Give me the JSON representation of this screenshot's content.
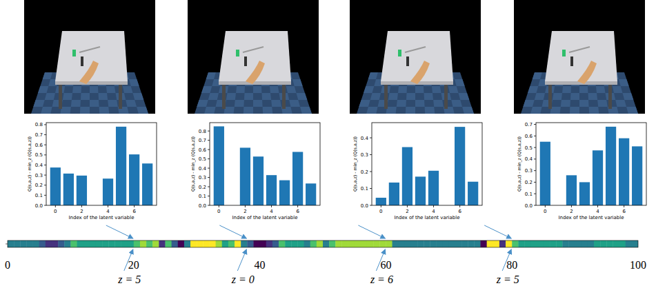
{
  "chart_data": [
    {
      "type": "bar",
      "x_label": "Index of the latent variable",
      "y_label": "Q(s,a,z) - min_z (Q(s,a,z))",
      "color": "#1f77b4",
      "categories": [
        0,
        1,
        2,
        3,
        4,
        5,
        6,
        7
      ],
      "values": [
        0.375,
        0.315,
        0.295,
        0,
        0.265,
        0.78,
        0.505,
        0.415
      ],
      "xlim": [
        -0.7,
        7.7
      ],
      "xticks": [
        0,
        2,
        4,
        6
      ],
      "ylim": [
        0,
        0.82
      ],
      "yticks": [
        {
          "value": 0,
          "label": "0.0"
        },
        {
          "value": 0.1,
          "label": "0.1"
        },
        {
          "value": 0.2,
          "label": "0.2"
        },
        {
          "value": 0.3,
          "label": "0.3"
        },
        {
          "value": 0.4,
          "label": "0.4"
        },
        {
          "value": 0.5,
          "label": "0.5"
        },
        {
          "value": 0.6,
          "label": "0.6"
        },
        {
          "value": 0.7,
          "label": "0.7"
        },
        {
          "value": 0.8,
          "label": "0.8"
        }
      ]
    },
    {
      "type": "bar",
      "x_label": "Index of the latent variable",
      "y_label": "Q(s,a,z) - min_z (Q(s,a,z))",
      "color": "#1f77b4",
      "categories": [
        0,
        1,
        2,
        3,
        4,
        5,
        6,
        7
      ],
      "values": [
        0.85,
        0,
        0.62,
        0.525,
        0.325,
        0.27,
        0.575,
        0.235
      ],
      "xlim": [
        -0.7,
        7.7
      ],
      "xticks": [
        0,
        2,
        4,
        6
      ],
      "ylim": [
        0,
        0.89
      ],
      "yticks": [
        {
          "value": 0,
          "label": "0.0"
        },
        {
          "value": 0.1,
          "label": "0.1"
        },
        {
          "value": 0.2,
          "label": "0.2"
        },
        {
          "value": 0.3,
          "label": "0.3"
        },
        {
          "value": 0.4,
          "label": "0.4"
        },
        {
          "value": 0.5,
          "label": "0.5"
        },
        {
          "value": 0.6,
          "label": "0.6"
        },
        {
          "value": 0.7,
          "label": "0.7"
        },
        {
          "value": 0.8,
          "label": "0.8"
        }
      ]
    },
    {
      "type": "bar",
      "x_label": "Index of the latent variable",
      "y_label": "Q(s,a,z) - min_z (Q(s,a,z))",
      "color": "#1f77b4",
      "categories": [
        0,
        1,
        2,
        3,
        4,
        5,
        6,
        7
      ],
      "values": [
        0.045,
        0.135,
        0.345,
        0.17,
        0.205,
        0,
        0.465,
        0.14
      ],
      "xlim": [
        -0.7,
        7.7
      ],
      "xticks": [
        0,
        2,
        4,
        6
      ],
      "ylim": [
        0,
        0.49
      ],
      "yticks": [
        {
          "value": 0,
          "label": "0.0"
        },
        {
          "value": 0.1,
          "label": "0.1"
        },
        {
          "value": 0.2,
          "label": "0.2"
        },
        {
          "value": 0.3,
          "label": "0.3"
        },
        {
          "value": 0.4,
          "label": "0.4"
        }
      ]
    },
    {
      "type": "bar",
      "x_label": "Index of the latent variable",
      "y_label": "Q(s,a,z) - min_z (Q(s,a,z))",
      "color": "#1f77b4",
      "categories": [
        0,
        1,
        2,
        3,
        4,
        5,
        6,
        7
      ],
      "values": [
        0.55,
        0,
        0.26,
        0.2,
        0.475,
        0.68,
        0.58,
        0.51
      ],
      "xlim": [
        -0.7,
        7.7
      ],
      "xticks": [
        0,
        2,
        4,
        6
      ],
      "ylim": [
        0,
        0.715
      ],
      "yticks": [
        {
          "value": 0,
          "label": "0.0"
        },
        {
          "value": 0.1,
          "label": "0.1"
        },
        {
          "value": 0.2,
          "label": "0.2"
        },
        {
          "value": 0.3,
          "label": "0.3"
        },
        {
          "value": 0.4,
          "label": "0.4"
        },
        {
          "value": 0.5,
          "label": "0.5"
        },
        {
          "value": 0.6,
          "label": "0.6"
        },
        {
          "value": 0.7,
          "label": "0.7"
        }
      ]
    },
    {
      "type": "heatmap",
      "values": [
        3,
        3,
        3,
        3,
        3,
        2,
        1,
        1,
        2,
        3,
        5,
        4,
        4,
        4,
        4,
        4,
        4,
        4,
        4,
        4,
        5,
        6,
        5,
        6,
        1,
        5,
        2,
        0,
        3,
        7,
        7,
        7,
        7,
        6,
        4,
        5,
        7,
        3,
        2,
        0,
        0,
        1,
        2,
        5,
        4,
        4,
        4,
        3,
        5,
        6,
        3,
        5,
        6,
        6,
        6,
        6,
        6,
        6,
        6,
        6,
        6,
        3,
        3,
        3,
        3,
        3,
        3,
        3,
        3,
        3,
        3,
        3,
        3,
        3,
        3,
        0,
        7,
        7,
        1,
        7,
        5,
        4,
        4,
        4,
        4,
        4,
        4,
        4,
        3,
        3,
        3,
        3,
        3,
        4,
        4,
        4,
        4,
        4,
        3,
        3
      ],
      "color_range": [
        0,
        7
      ],
      "xlim": [
        0,
        100
      ],
      "xticks": [
        0,
        20,
        40,
        60,
        80,
        100
      ],
      "annotations": [
        {
          "x": 20,
          "text": "z = 5"
        },
        {
          "x": 38,
          "text": "z = 0"
        },
        {
          "x": 60,
          "text": "z = 6"
        },
        {
          "x": 80,
          "text": "z = 5"
        }
      ]
    }
  ]
}
